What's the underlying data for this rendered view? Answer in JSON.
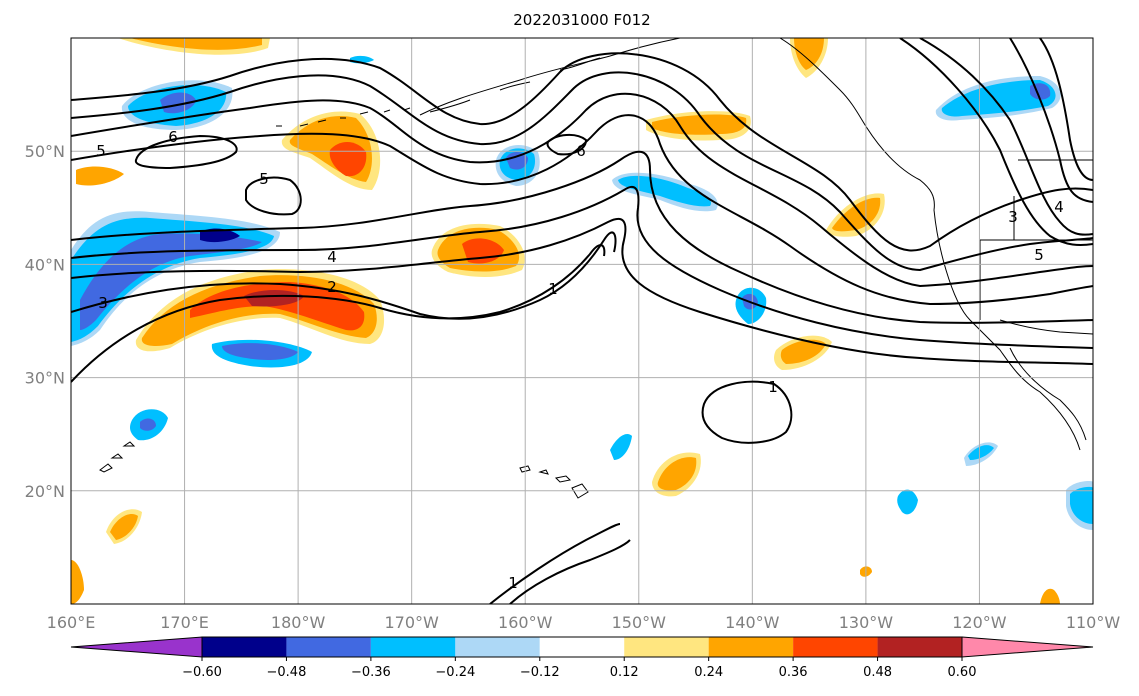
{
  "title": "2022031000 F012",
  "map": {
    "lon_ticks": [
      "160°E",
      "170°E",
      "180°W",
      "170°W",
      "160°W",
      "150°W",
      "140°W",
      "130°W",
      "120°W",
      "110°W"
    ],
    "lat_ticks": [
      "50°N",
      "40°N",
      "30°N",
      "20°N"
    ],
    "extent": {
      "lon": [
        160,
        250
      ],
      "lat": [
        10,
        60
      ]
    },
    "grid": true
  },
  "colorbar": {
    "tick_labels": [
      "−0.60",
      "−0.48",
      "−0.36",
      "−0.24",
      "−0.12",
      "0.12",
      "0.24",
      "0.36",
      "0.48",
      "0.60"
    ],
    "colors": [
      "#9933cc",
      "#00008b",
      "#4169e1",
      "#00bfff",
      "#add8f6",
      "#ffffff",
      "#ffe680",
      "#ffa500",
      "#ff4500",
      "#b22222",
      "#ff88aa"
    ],
    "extend": "both"
  },
  "contours": {
    "line_color": "#000000",
    "labels": [
      "5",
      "6",
      "5",
      "6",
      "4",
      "3",
      "2",
      "1",
      "1",
      "1",
      "3",
      "4",
      "5"
    ]
  }
}
